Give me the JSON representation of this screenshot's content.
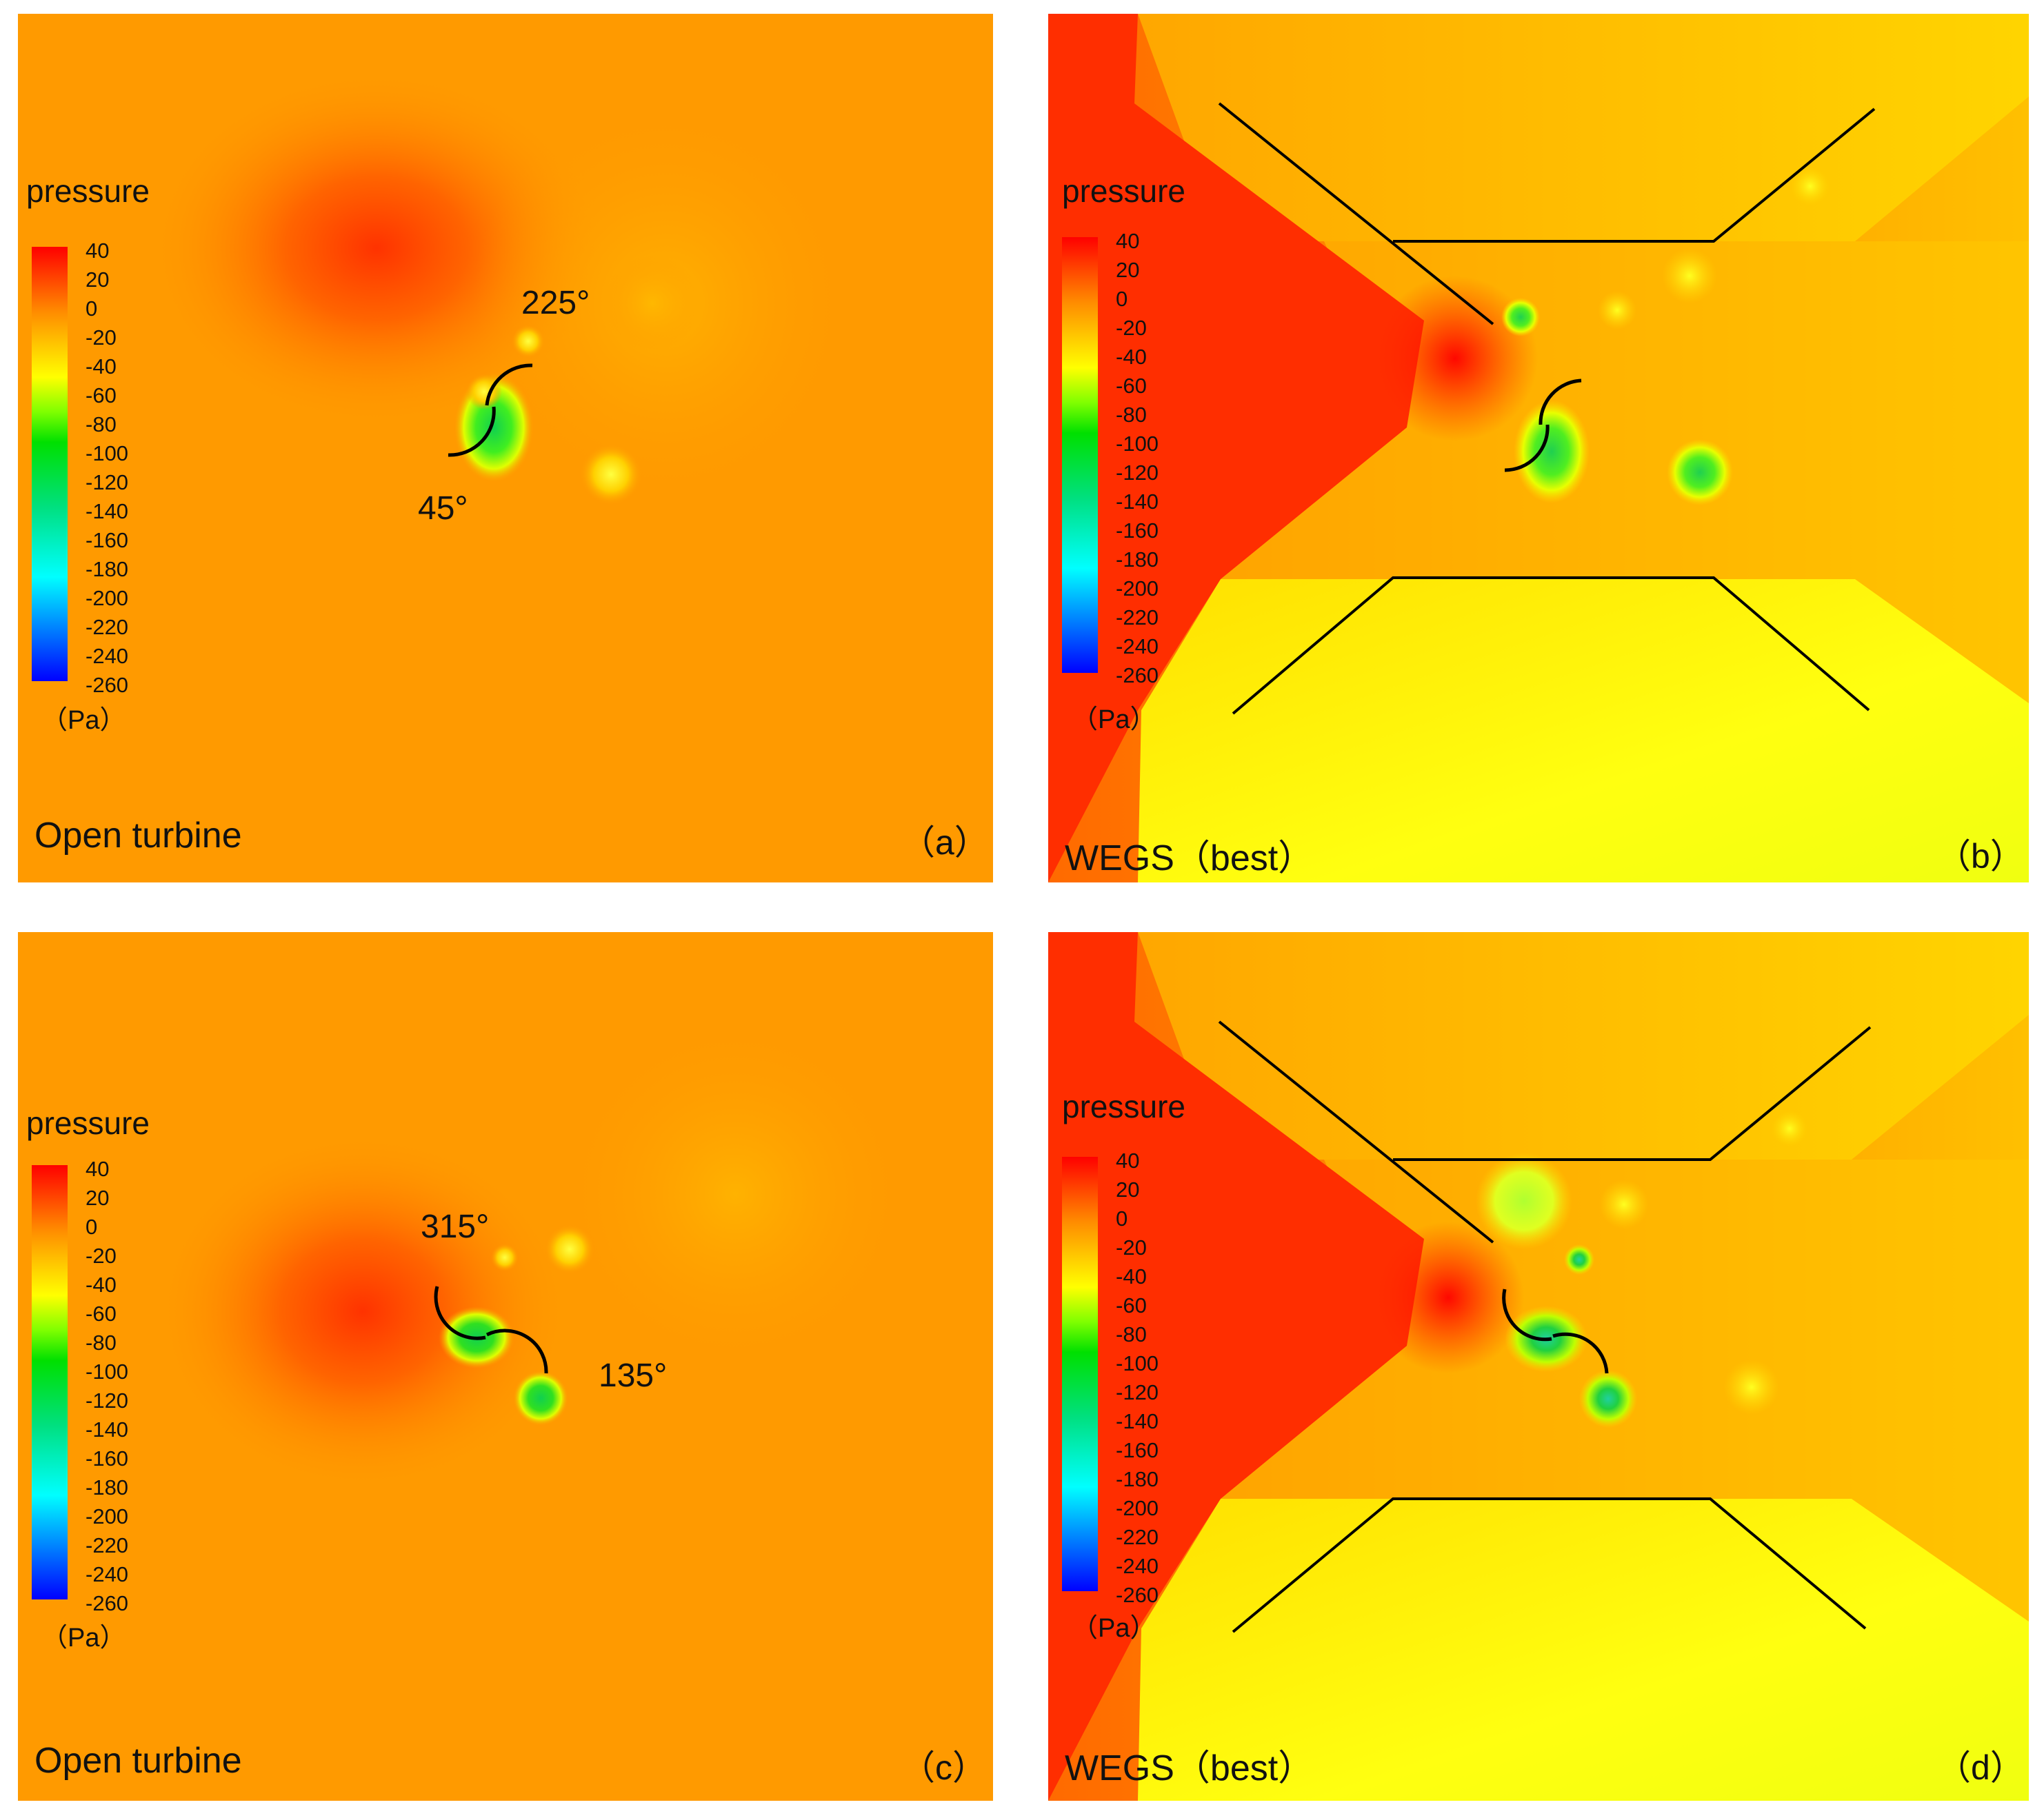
{
  "colorbar": {
    "title": "pressure",
    "unit": "（Pa）",
    "ticks": [
      "40",
      "20",
      "0",
      "-20",
      "-40",
      "-60",
      "-80",
      "-100",
      "-120",
      "-140",
      "-160",
      "-180",
      "-200",
      "-220",
      "-240",
      "-260"
    ]
  },
  "panels": {
    "a": {
      "caption": "Open turbine",
      "letter": "（a）",
      "angle1": "225°",
      "angle2": "45°"
    },
    "b": {
      "caption": "WEGS（best）",
      "letter": "（b）"
    },
    "c": {
      "caption": "Open turbine",
      "letter": "（c）",
      "angle1": "315°",
      "angle2": "135°"
    },
    "d": {
      "caption": "WEGS（best）",
      "letter": "（d）"
    }
  },
  "colors": {
    "background_orange": "#ff9a00",
    "high_pressure_red": "#ff2000",
    "low_pressure_yellow": "#ffff10",
    "vortex_green": "#22dd22"
  }
}
